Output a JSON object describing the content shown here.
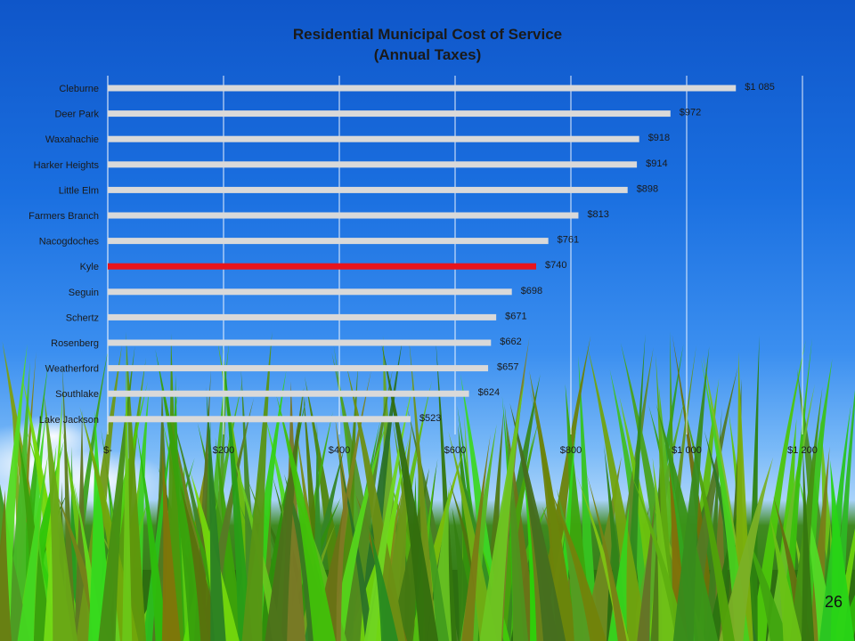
{
  "slide_number": "26",
  "chart_data": {
    "type": "bar",
    "orientation": "horizontal",
    "title": "Residential Municipal Cost of Service",
    "subtitle": "(Annual Taxes)",
    "xlabel": "",
    "ylabel": "",
    "categories": [
      "Cleburne",
      "Deer Park",
      "Waxahachie",
      "Harker Heights",
      "Little Elm",
      "Farmers Branch",
      "Nacogdoches",
      "Kyle",
      "Seguin",
      "Schertz",
      "Rosenberg",
      "Weatherford",
      "Southlake",
      "Lake Jackson"
    ],
    "values": [
      1085,
      972,
      918,
      914,
      898,
      813,
      761,
      740,
      698,
      671,
      662,
      657,
      624,
      523
    ],
    "data_labels": [
      "$1 085",
      "$972",
      "$918",
      "$914",
      "$898",
      "$813",
      "$761",
      "$740",
      "$698",
      "$671",
      "$662",
      "$657",
      "$624",
      "$523"
    ],
    "highlight_category": "Kyle",
    "colors": {
      "bar": "#d9d9d9",
      "highlight": "#e8141c",
      "gridline": "#ffffff",
      "text": "#1a1a1a"
    },
    "xlim": [
      0,
      1200
    ],
    "x_ticks": [
      0,
      200,
      400,
      600,
      800,
      1000,
      1200
    ],
    "x_tick_labels": [
      "$-",
      "$200",
      "$400",
      "$600",
      "$800",
      "$1 000",
      "$1 200"
    ],
    "grid": true,
    "legend": "none"
  }
}
